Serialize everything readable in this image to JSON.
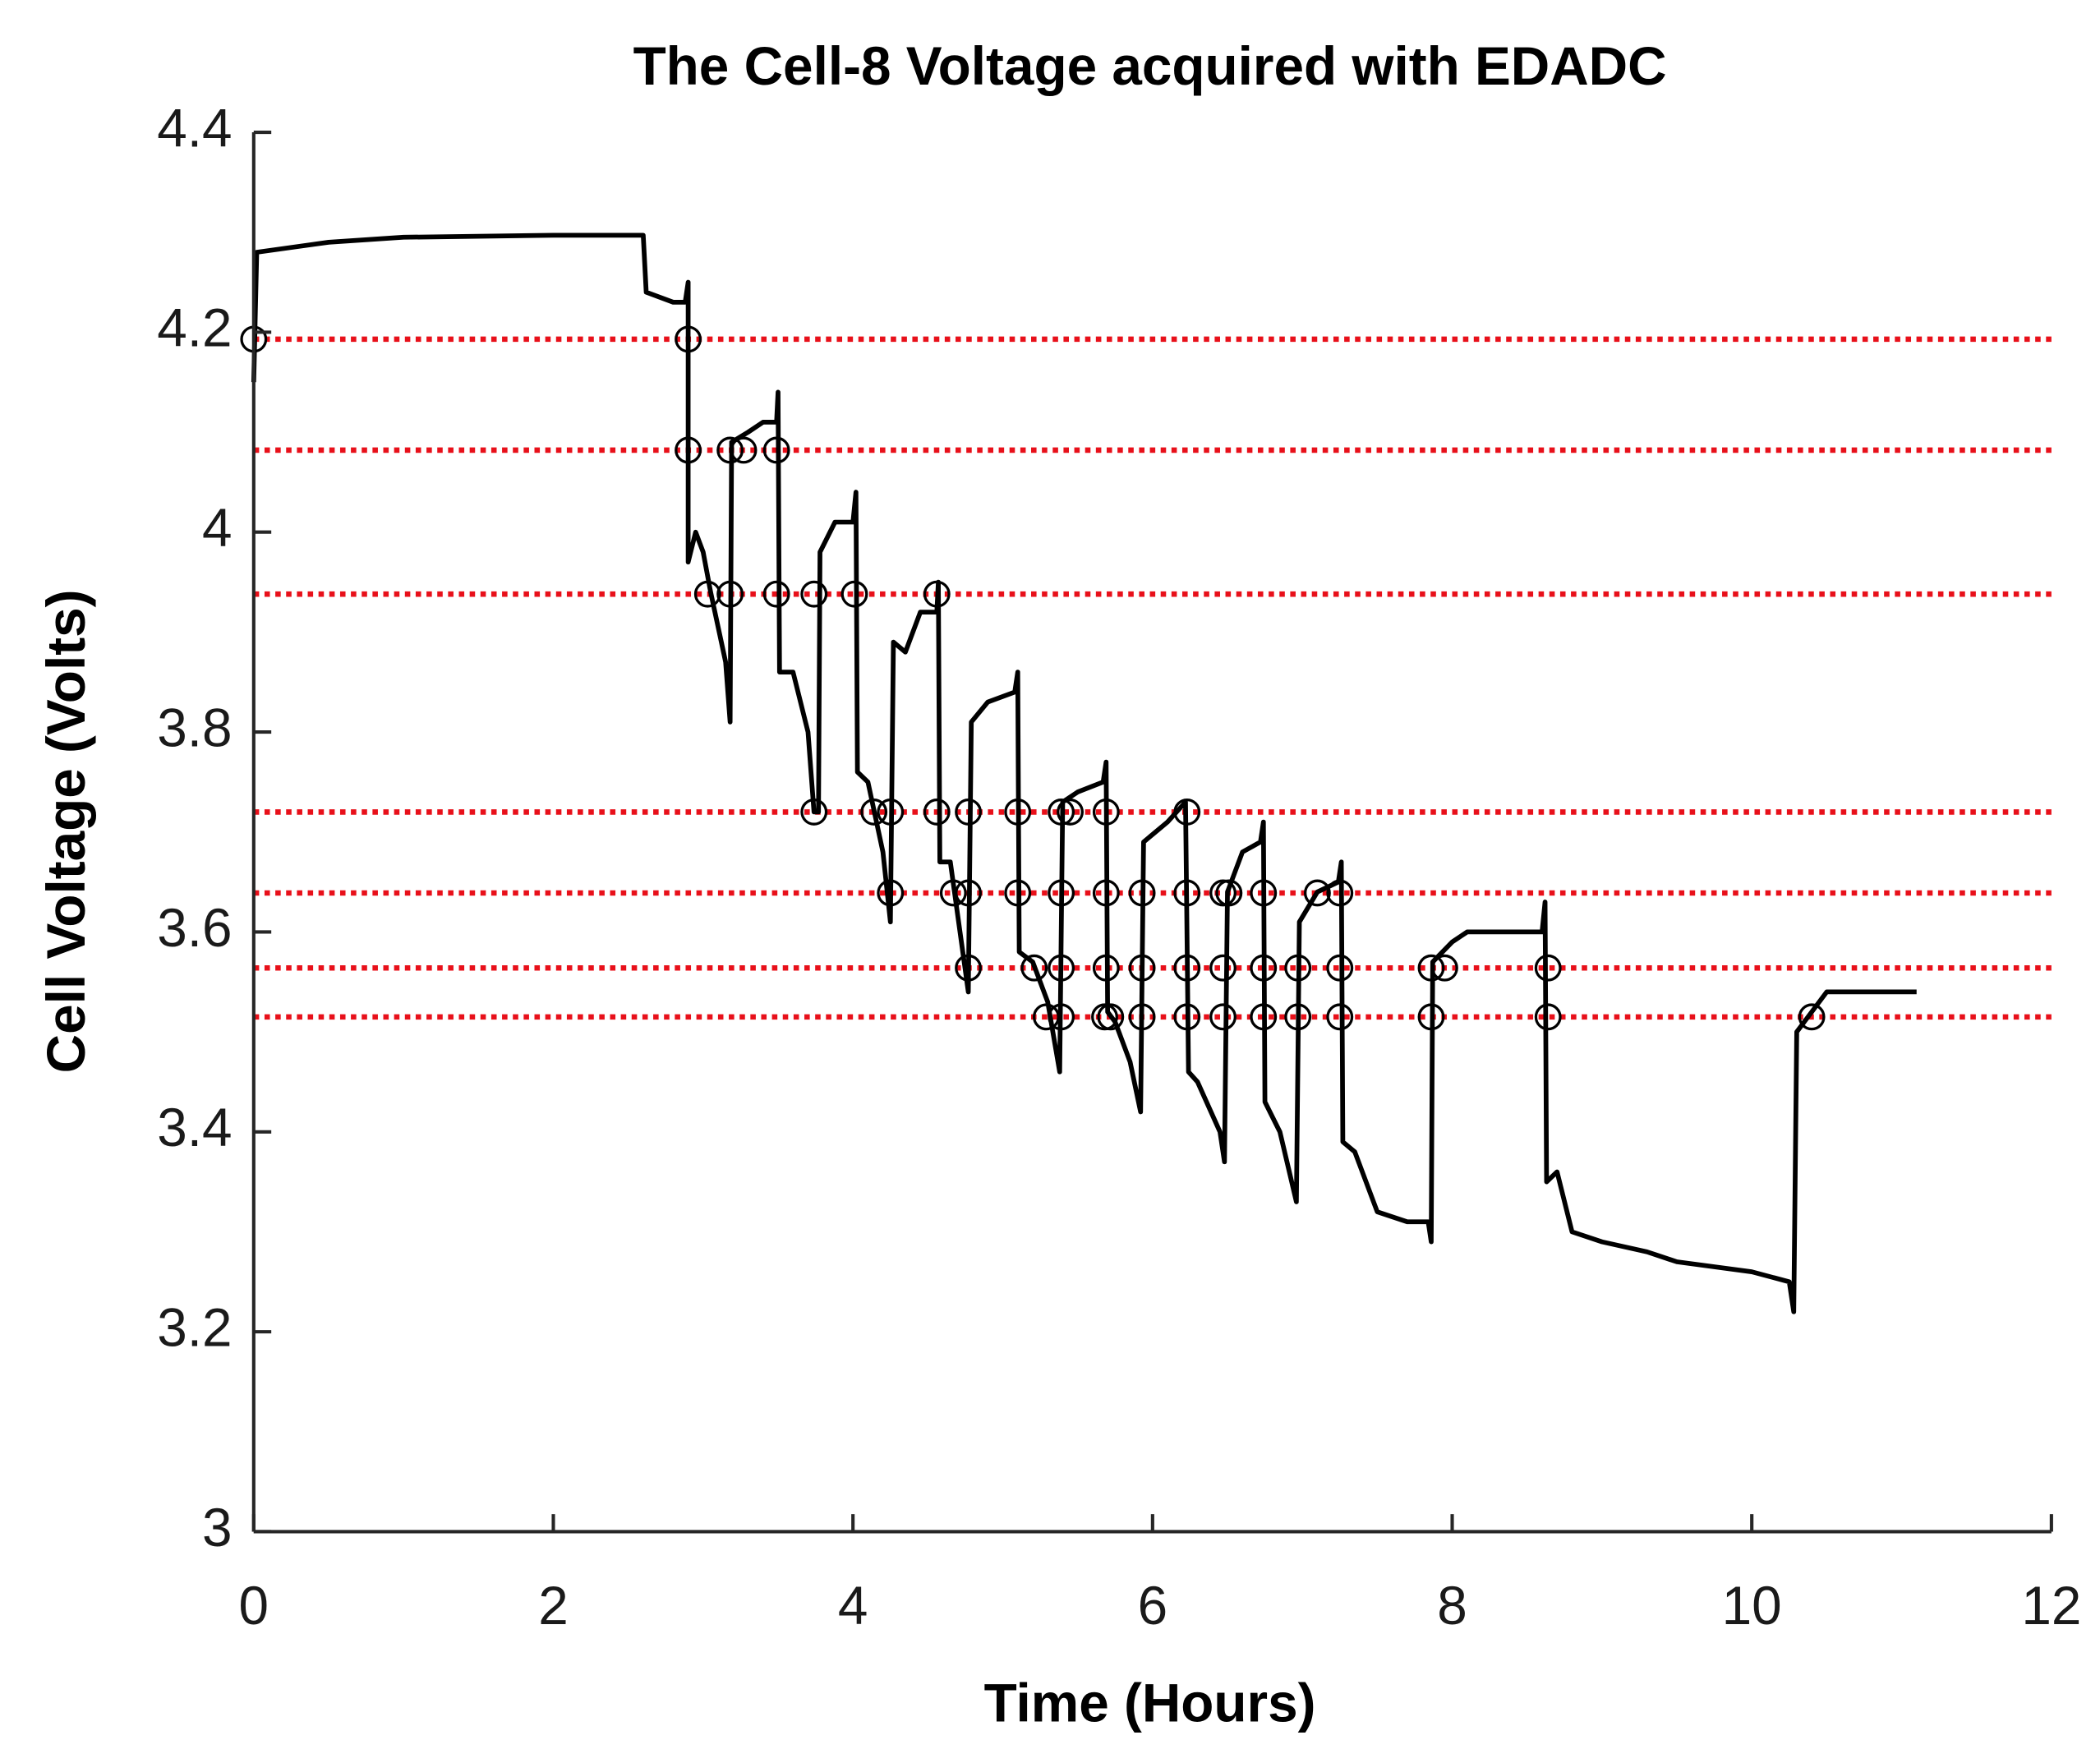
{
  "chart_data": {
    "type": "line",
    "title": "The Cell-8 Voltage acquired with EDADC",
    "x_label": "Time (Hours)",
    "y_label": "Cell Voltage (Volts)",
    "xlim": [
      0,
      12
    ],
    "xticks": [
      0,
      2,
      4,
      6,
      8,
      10,
      12
    ],
    "ylim": [
      3,
      4.4
    ],
    "yticks": [
      3,
      3.2,
      3.4,
      3.6,
      3.8,
      4,
      4.2,
      4.4
    ],
    "thresholds": {
      "color": "#e8101a",
      "values": [
        4.193,
        4.082,
        3.938,
        3.72,
        3.639,
        3.564,
        3.515
      ]
    },
    "series": [
      {
        "color": "#000000",
        "x": [
          0,
          0.02,
          0.5,
          1,
          2,
          2.6,
          2.62,
          2.8,
          2.88,
          2.9,
          2.9,
          2.95,
          3.0,
          3.05,
          3.15,
          3.18,
          3.19,
          3.3,
          3.4,
          3.49,
          3.5,
          3.51,
          3.6,
          3.7,
          3.74,
          3.77,
          3.78,
          3.88,
          4.0,
          4.02,
          4.03,
          4.1,
          4.2,
          4.25,
          4.27,
          4.35,
          4.45,
          4.56,
          4.57,
          4.58,
          4.65,
          4.77,
          4.79,
          4.9,
          5.08,
          5.1,
          5.11,
          5.2,
          5.3,
          5.38,
          5.4,
          5.5,
          5.67,
          5.69,
          5.7,
          5.75,
          5.85,
          5.92,
          5.94,
          6.1,
          6.22,
          6.24,
          6.3,
          6.45,
          6.48,
          6.5,
          6.6,
          6.72,
          6.74,
          6.75,
          6.85,
          6.96,
          6.98,
          7.1,
          7.24,
          7.26,
          7.27,
          7.35,
          7.5,
          7.7,
          7.84,
          7.86,
          7.87,
          8.0,
          8.1,
          8.6,
          8.62,
          8.63,
          8.7,
          8.8,
          9.0,
          9.3,
          9.5,
          10.0,
          10.25,
          10.28,
          10.3,
          10.35,
          10.5,
          11.1
        ],
        "values": [
          4.15,
          4.28,
          4.29,
          4.295,
          4.297,
          4.297,
          4.24,
          4.23,
          4.23,
          4.25,
          3.97,
          4.0,
          3.98,
          3.94,
          3.87,
          3.81,
          4.09,
          4.1,
          4.11,
          4.11,
          4.14,
          3.86,
          3.86,
          3.8,
          3.72,
          3.72,
          3.98,
          4.01,
          4.01,
          4.04,
          3.76,
          3.75,
          3.68,
          3.61,
          3.89,
          3.88,
          3.92,
          3.92,
          3.95,
          3.67,
          3.67,
          3.54,
          3.81,
          3.83,
          3.84,
          3.86,
          3.58,
          3.57,
          3.53,
          3.46,
          3.73,
          3.74,
          3.75,
          3.77,
          3.52,
          3.51,
          3.47,
          3.42,
          3.69,
          3.71,
          3.73,
          3.46,
          3.45,
          3.4,
          3.37,
          3.64,
          3.68,
          3.69,
          3.71,
          3.43,
          3.4,
          3.33,
          3.61,
          3.64,
          3.65,
          3.67,
          3.39,
          3.38,
          3.32,
          3.31,
          3.31,
          3.29,
          3.57,
          3.59,
          3.6,
          3.6,
          3.63,
          3.35,
          3.36,
          3.3,
          3.29,
          3.28,
          3.27,
          3.26,
          3.25,
          3.22,
          3.5,
          3.51,
          3.54,
          3.54
        ]
      },
      {
        "color": "#000000",
        "marker": "circle",
        "x": [
          0,
          2.9,
          2.9,
          3.18,
          3.27,
          3.49,
          3.03,
          3.18,
          3.49,
          3.74,
          4.01,
          4.56,
          3.74,
          4.14,
          4.25,
          4.56,
          4.77,
          5.1,
          5.39,
          5.45,
          5.69,
          6.23,
          4.25,
          4.67,
          4.77,
          5.1,
          5.39,
          5.69,
          5.93,
          6.23,
          6.47,
          6.51,
          6.74,
          7.1,
          7.25,
          4.77,
          5.21,
          5.39,
          5.69,
          5.93,
          6.23,
          6.47,
          6.74,
          6.97,
          7.25,
          7.86,
          7.95,
          8.64,
          5.29,
          5.39,
          5.68,
          5.72,
          5.93,
          6.23,
          6.47,
          6.74,
          6.97,
          7.25,
          7.86,
          8.64,
          10.4
        ],
        "values": [
          4.193,
          4.193,
          4.082,
          4.082,
          4.082,
          4.082,
          3.938,
          3.938,
          3.938,
          3.938,
          3.938,
          3.938,
          3.72,
          3.72,
          3.72,
          3.72,
          3.72,
          3.72,
          3.72,
          3.72,
          3.72,
          3.72,
          3.639,
          3.639,
          3.639,
          3.639,
          3.639,
          3.639,
          3.639,
          3.639,
          3.639,
          3.639,
          3.639,
          3.639,
          3.639,
          3.564,
          3.564,
          3.564,
          3.564,
          3.564,
          3.564,
          3.564,
          3.564,
          3.564,
          3.564,
          3.564,
          3.564,
          3.564,
          3.515,
          3.515,
          3.515,
          3.515,
          3.515,
          3.515,
          3.515,
          3.515,
          3.515,
          3.515,
          3.515,
          3.515,
          3.515
        ]
      }
    ]
  }
}
